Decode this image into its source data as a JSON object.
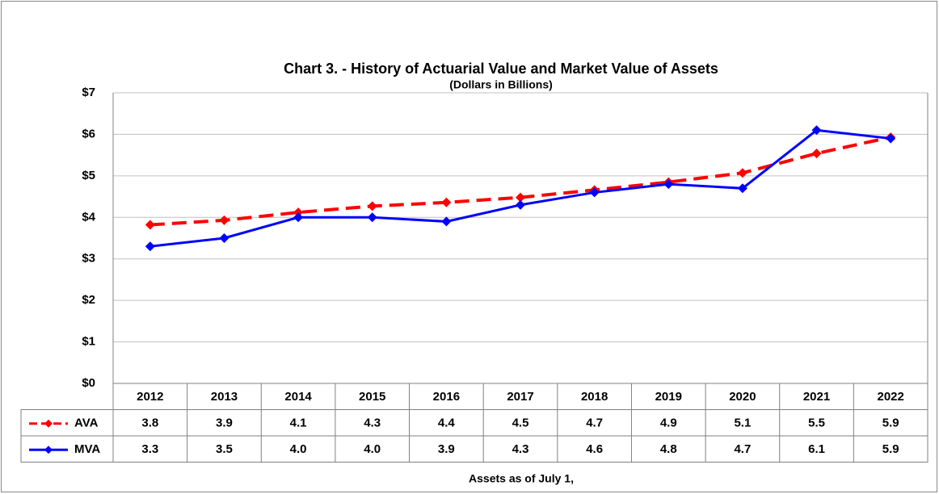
{
  "chart_data": {
    "type": "line",
    "title": "Chart 3. - History of Actuarial Value and Market Value of Assets",
    "subtitle": "(Dollars in Billions)",
    "x_label": "Assets as of July 1,",
    "categories": [
      "2012",
      "2013",
      "2014",
      "2015",
      "2016",
      "2017",
      "2018",
      "2019",
      "2020",
      "2021",
      "2022"
    ],
    "series": [
      {
        "name": "AVA",
        "color": "#ff0000",
        "dashed": true,
        "values": [
          3.82,
          3.93,
          4.12,
          4.27,
          4.36,
          4.48,
          4.66,
          4.85,
          5.07,
          5.54,
          5.93
        ],
        "value_labels": [
          "3.8",
          "3.9",
          "4.1",
          "4.3",
          "4.4",
          "4.5",
          "4.7",
          "4.9",
          "5.1",
          "5.5",
          "5.9"
        ]
      },
      {
        "name": "MVA",
        "color": "#0000ff",
        "dashed": false,
        "values": [
          3.3,
          3.5,
          4.0,
          4.0,
          3.9,
          4.3,
          4.6,
          4.8,
          4.7,
          6.1,
          5.9
        ],
        "value_labels": [
          "3.3",
          "3.5",
          "4.0",
          "4.0",
          "3.9",
          "4.3",
          "4.6",
          "4.8",
          "4.7",
          "6.1",
          "5.9"
        ]
      }
    ],
    "ylim": [
      0,
      7
    ],
    "yticks": [
      {
        "value": 0,
        "label": "$0"
      },
      {
        "value": 1,
        "label": "$1"
      },
      {
        "value": 2,
        "label": "$2"
      },
      {
        "value": 3,
        "label": "$3"
      },
      {
        "value": 4,
        "label": "$4"
      },
      {
        "value": 5,
        "label": "$5"
      },
      {
        "value": 6,
        "label": "$6"
      },
      {
        "value": 7,
        "label": "$7"
      }
    ],
    "grid": true
  }
}
